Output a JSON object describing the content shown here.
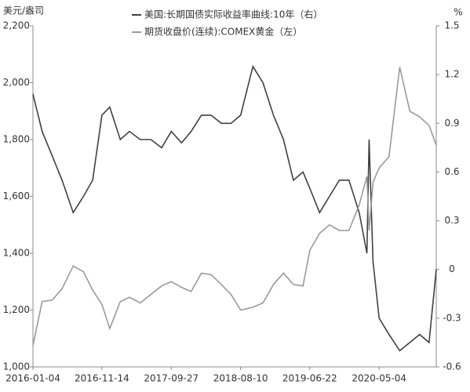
{
  "chart_data": {
    "type": "line",
    "legend": "top",
    "y_label": "美元/盎司",
    "y2_label": "%",
    "x": [
      "2016-01-04",
      "2016-02-15",
      "2016-04-01",
      "2016-05-16",
      "2016-07-06",
      "2016-08-22",
      "2016-10-03",
      "2016-11-14",
      "2016-12-20",
      "2017-02-06",
      "2017-03-20",
      "2017-05-08",
      "2017-06-26",
      "2017-08-14",
      "2017-09-27",
      "2017-11-13",
      "2017-12-27",
      "2018-02-12",
      "2018-03-28",
      "2018-05-14",
      "2018-06-27",
      "2018-08-10",
      "2018-10-05",
      "2018-11-20",
      "2019-01-07",
      "2019-02-22",
      "2019-04-08",
      "2019-05-22",
      "2019-06-22",
      "2019-08-06",
      "2019-09-20",
      "2019-11-04",
      "2019-12-18",
      "2020-02-03",
      "2020-03-09",
      "2020-03-19",
      "2020-04-06",
      "2020-05-04",
      "2020-06-18",
      "2020-08-06",
      "2020-09-21",
      "2020-11-05",
      "2020-12-18",
      "2021-01-20"
    ],
    "xlim": [
      "2016-01-04",
      "2021-01-20"
    ],
    "xticks": [
      "2016-01-04",
      "2016-11-14",
      "2017-09-27",
      "2018-08-10",
      "2019-06-22",
      "2020-05-04"
    ],
    "ylim": [
      1000,
      2200
    ],
    "yticks": [
      {
        "value": 1000,
        "label": "1,000"
      },
      {
        "value": 1200,
        "label": "1,200"
      },
      {
        "value": 1400,
        "label": "1,400"
      },
      {
        "value": 1600,
        "label": "1,600"
      },
      {
        "value": 1800,
        "label": "1,800"
      },
      {
        "value": 2000,
        "label": "2,000"
      },
      {
        "value": 2200,
        "label": "2,200"
      }
    ],
    "y2lim": [
      -0.6,
      1.5
    ],
    "y2ticks": [
      -0.6,
      -0.3,
      0,
      0.3,
      0.6,
      0.9,
      1.2,
      1.5
    ],
    "series": [
      {
        "name": "美国:长期国债实际收益率曲线:10年（右）",
        "color": "#404040",
        "axis": "y2",
        "values": [
          1.08,
          0.85,
          0.7,
          0.55,
          0.35,
          0.45,
          0.55,
          0.95,
          1.0,
          0.8,
          0.85,
          0.8,
          0.8,
          0.75,
          0.85,
          0.78,
          0.85,
          0.95,
          0.95,
          0.9,
          0.9,
          0.95,
          1.25,
          1.15,
          0.95,
          0.8,
          0.55,
          0.6,
          0.5,
          0.35,
          0.45,
          0.55,
          0.55,
          0.35,
          0.1,
          0.8,
          0.05,
          -0.3,
          -0.4,
          -0.5,
          -0.45,
          -0.4,
          -0.45,
          0.0
        ]
      },
      {
        "name": "期货收盘价(连续):COMEX黄金（左）",
        "color": "#999999",
        "values": [
          1075,
          1230,
          1235,
          1275,
          1355,
          1335,
          1270,
          1220,
          1135,
          1230,
          1245,
          1225,
          1255,
          1285,
          1300,
          1280,
          1265,
          1330,
          1325,
          1290,
          1255,
          1200,
          1210,
          1225,
          1290,
          1330,
          1290,
          1285,
          1410,
          1470,
          1500,
          1480,
          1480,
          1570,
          1670,
          1480,
          1650,
          1700,
          1740,
          2055,
          1900,
          1880,
          1850,
          1780
        ]
      }
    ]
  }
}
